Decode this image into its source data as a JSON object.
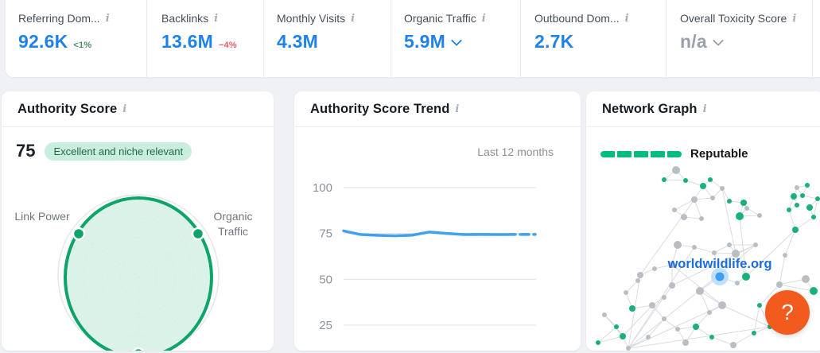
{
  "icons": {
    "info_glyph": "i"
  },
  "top_metrics": {
    "items": [
      {
        "label": "Referring Dom...",
        "value": "92.6K",
        "delta": "<1%"
      },
      {
        "label": "Backlinks",
        "value": "13.6M",
        "delta": "−4%"
      },
      {
        "label": "Monthly Visits",
        "value": "4.3M"
      },
      {
        "label": "Organic Traffic",
        "value": "5.9M"
      },
      {
        "label": "Outbound Dom...",
        "value": "2.7K"
      },
      {
        "label": "Overall Toxicity Score",
        "value": "n/a"
      }
    ]
  },
  "authority_card": {
    "title": "Authority Score",
    "score": "75",
    "badge": "Excellent and niche relevant",
    "chart_data": {
      "type": "radar",
      "axes": [
        "Link Power",
        "Organic Traffic",
        ""
      ],
      "values": [
        88,
        88,
        97
      ],
      "max": 100,
      "fill_color": "#d3f0e4",
      "stroke_color": "#0ca469"
    }
  },
  "trend_card": {
    "title": "Authority Score Trend",
    "range_label": "Last 12 months",
    "chart_data": {
      "type": "line",
      "title": "Authority Score Trend",
      "xlabel": "last 12 months",
      "ylabel": "Authority Score",
      "ylim": [
        0,
        100
      ],
      "yticks": [
        100,
        75,
        50,
        25
      ],
      "values": [
        76.4,
        74.4,
        74.0,
        73.7,
        74.1,
        75.8,
        75.0,
        74.4,
        74.5,
        74.4,
        74.5,
        74.5
      ],
      "last_segment_dashed": true,
      "line_color": "#41a1ee",
      "grid": true
    }
  },
  "network_card": {
    "title": "Network Graph",
    "legend": {
      "segments": 5,
      "color": "#00bd7f",
      "label": "Reputable"
    },
    "center_label": "worldwildlife.org",
    "label_color": "#1c6cdb",
    "node_colors": {
      "g": "#b9bdc4",
      "e": "#18b178",
      "b": "#3f9ef2",
      "halo": "#bfdffa"
    },
    "edge_color": "#d9dce0",
    "nodes": [
      [
        113,
        53,
        5,
        "g"
      ],
      [
        98,
        65,
        3,
        "e"
      ],
      [
        125,
        66,
        3,
        "e"
      ],
      [
        147,
        73,
        4,
        "e"
      ],
      [
        156,
        65,
        3,
        "e"
      ],
      [
        171,
        76,
        3,
        "g"
      ],
      [
        180,
        92,
        3,
        "e"
      ],
      [
        198,
        94,
        4,
        "e"
      ],
      [
        202,
        101,
        3,
        "g"
      ],
      [
        193,
        111,
        5,
        "e"
      ],
      [
        136,
        90,
        4,
        "g"
      ],
      [
        123,
        112,
        4,
        "g"
      ],
      [
        111,
        103,
        3,
        "g"
      ],
      [
        145,
        114,
        3,
        "g"
      ],
      [
        159,
        88,
        3,
        "g"
      ],
      [
        265,
        75,
        3,
        "g"
      ],
      [
        261,
        86,
        4,
        "e"
      ],
      [
        272,
        85,
        3,
        "e"
      ],
      [
        255,
        103,
        3,
        "e"
      ],
      [
        265,
        97,
        3,
        "e"
      ],
      [
        281,
        100,
        4,
        "e"
      ],
      [
        286,
        112,
        3,
        "e"
      ],
      [
        263,
        128,
        4,
        "e"
      ],
      [
        291,
        89,
        3,
        "e"
      ],
      [
        278,
        72,
        3,
        "e"
      ],
      [
        218,
        110,
        3,
        "g"
      ],
      [
        250,
        160,
        3,
        "g"
      ],
      [
        213,
        147,
        3,
        "g"
      ],
      [
        188,
        158,
        5,
        "g"
      ],
      [
        180,
        147,
        3,
        "g"
      ],
      [
        115,
        147,
        5,
        "g"
      ],
      [
        136,
        150,
        3,
        "g"
      ],
      [
        161,
        157,
        3,
        "g"
      ],
      [
        108,
        172,
        4,
        "g"
      ],
      [
        86,
        177,
        3,
        "g"
      ],
      [
        68,
        185,
        4,
        "g"
      ],
      [
        201,
        187,
        5,
        "e"
      ],
      [
        190,
        195,
        3,
        "g"
      ],
      [
        108,
        198,
        4,
        "g"
      ],
      [
        143,
        205,
        5,
        "g"
      ],
      [
        98,
        213,
        3,
        "g"
      ],
      [
        83,
        223,
        4,
        "g"
      ],
      [
        58,
        227,
        4,
        "e"
      ],
      [
        50,
        207,
        3,
        "g"
      ],
      [
        65,
        192,
        3,
        "g"
      ],
      [
        171,
        223,
        5,
        "g"
      ],
      [
        155,
        232,
        3,
        "g"
      ],
      [
        138,
        250,
        4,
        "e"
      ],
      [
        115,
        253,
        3,
        "g"
      ],
      [
        98,
        240,
        3,
        "g"
      ],
      [
        38,
        250,
        3,
        "e"
      ],
      [
        46,
        262,
        4,
        "e"
      ],
      [
        78,
        263,
        3,
        "g"
      ],
      [
        125,
        270,
        4,
        "g"
      ],
      [
        158,
        263,
        3,
        "e"
      ],
      [
        185,
        273,
        4,
        "g"
      ],
      [
        211,
        258,
        3,
        "e"
      ],
      [
        231,
        250,
        3,
        "e"
      ],
      [
        243,
        197,
        4,
        "g"
      ],
      [
        276,
        190,
        5,
        "g"
      ],
      [
        286,
        205,
        5,
        "e"
      ],
      [
        218,
        223,
        3,
        "e"
      ],
      [
        23,
        235,
        3,
        "g"
      ],
      [
        15,
        270,
        3,
        "e"
      ],
      [
        53,
        277,
        3,
        "g"
      ],
      [
        168,
        187,
        6,
        "b"
      ]
    ],
    "extra_edges": [
      [
        64,
        35
      ],
      [
        64,
        38
      ],
      [
        64,
        45
      ],
      [
        64,
        27
      ],
      [
        64,
        31
      ],
      [
        64,
        57
      ],
      [
        10,
        35
      ],
      [
        33,
        45
      ],
      [
        5,
        28
      ],
      [
        45,
        57
      ],
      [
        38,
        27
      ],
      [
        9,
        36
      ],
      [
        22,
        36
      ],
      [
        58,
        60
      ],
      [
        41,
        51
      ]
    ]
  },
  "help_button": {
    "glyph": "?"
  }
}
